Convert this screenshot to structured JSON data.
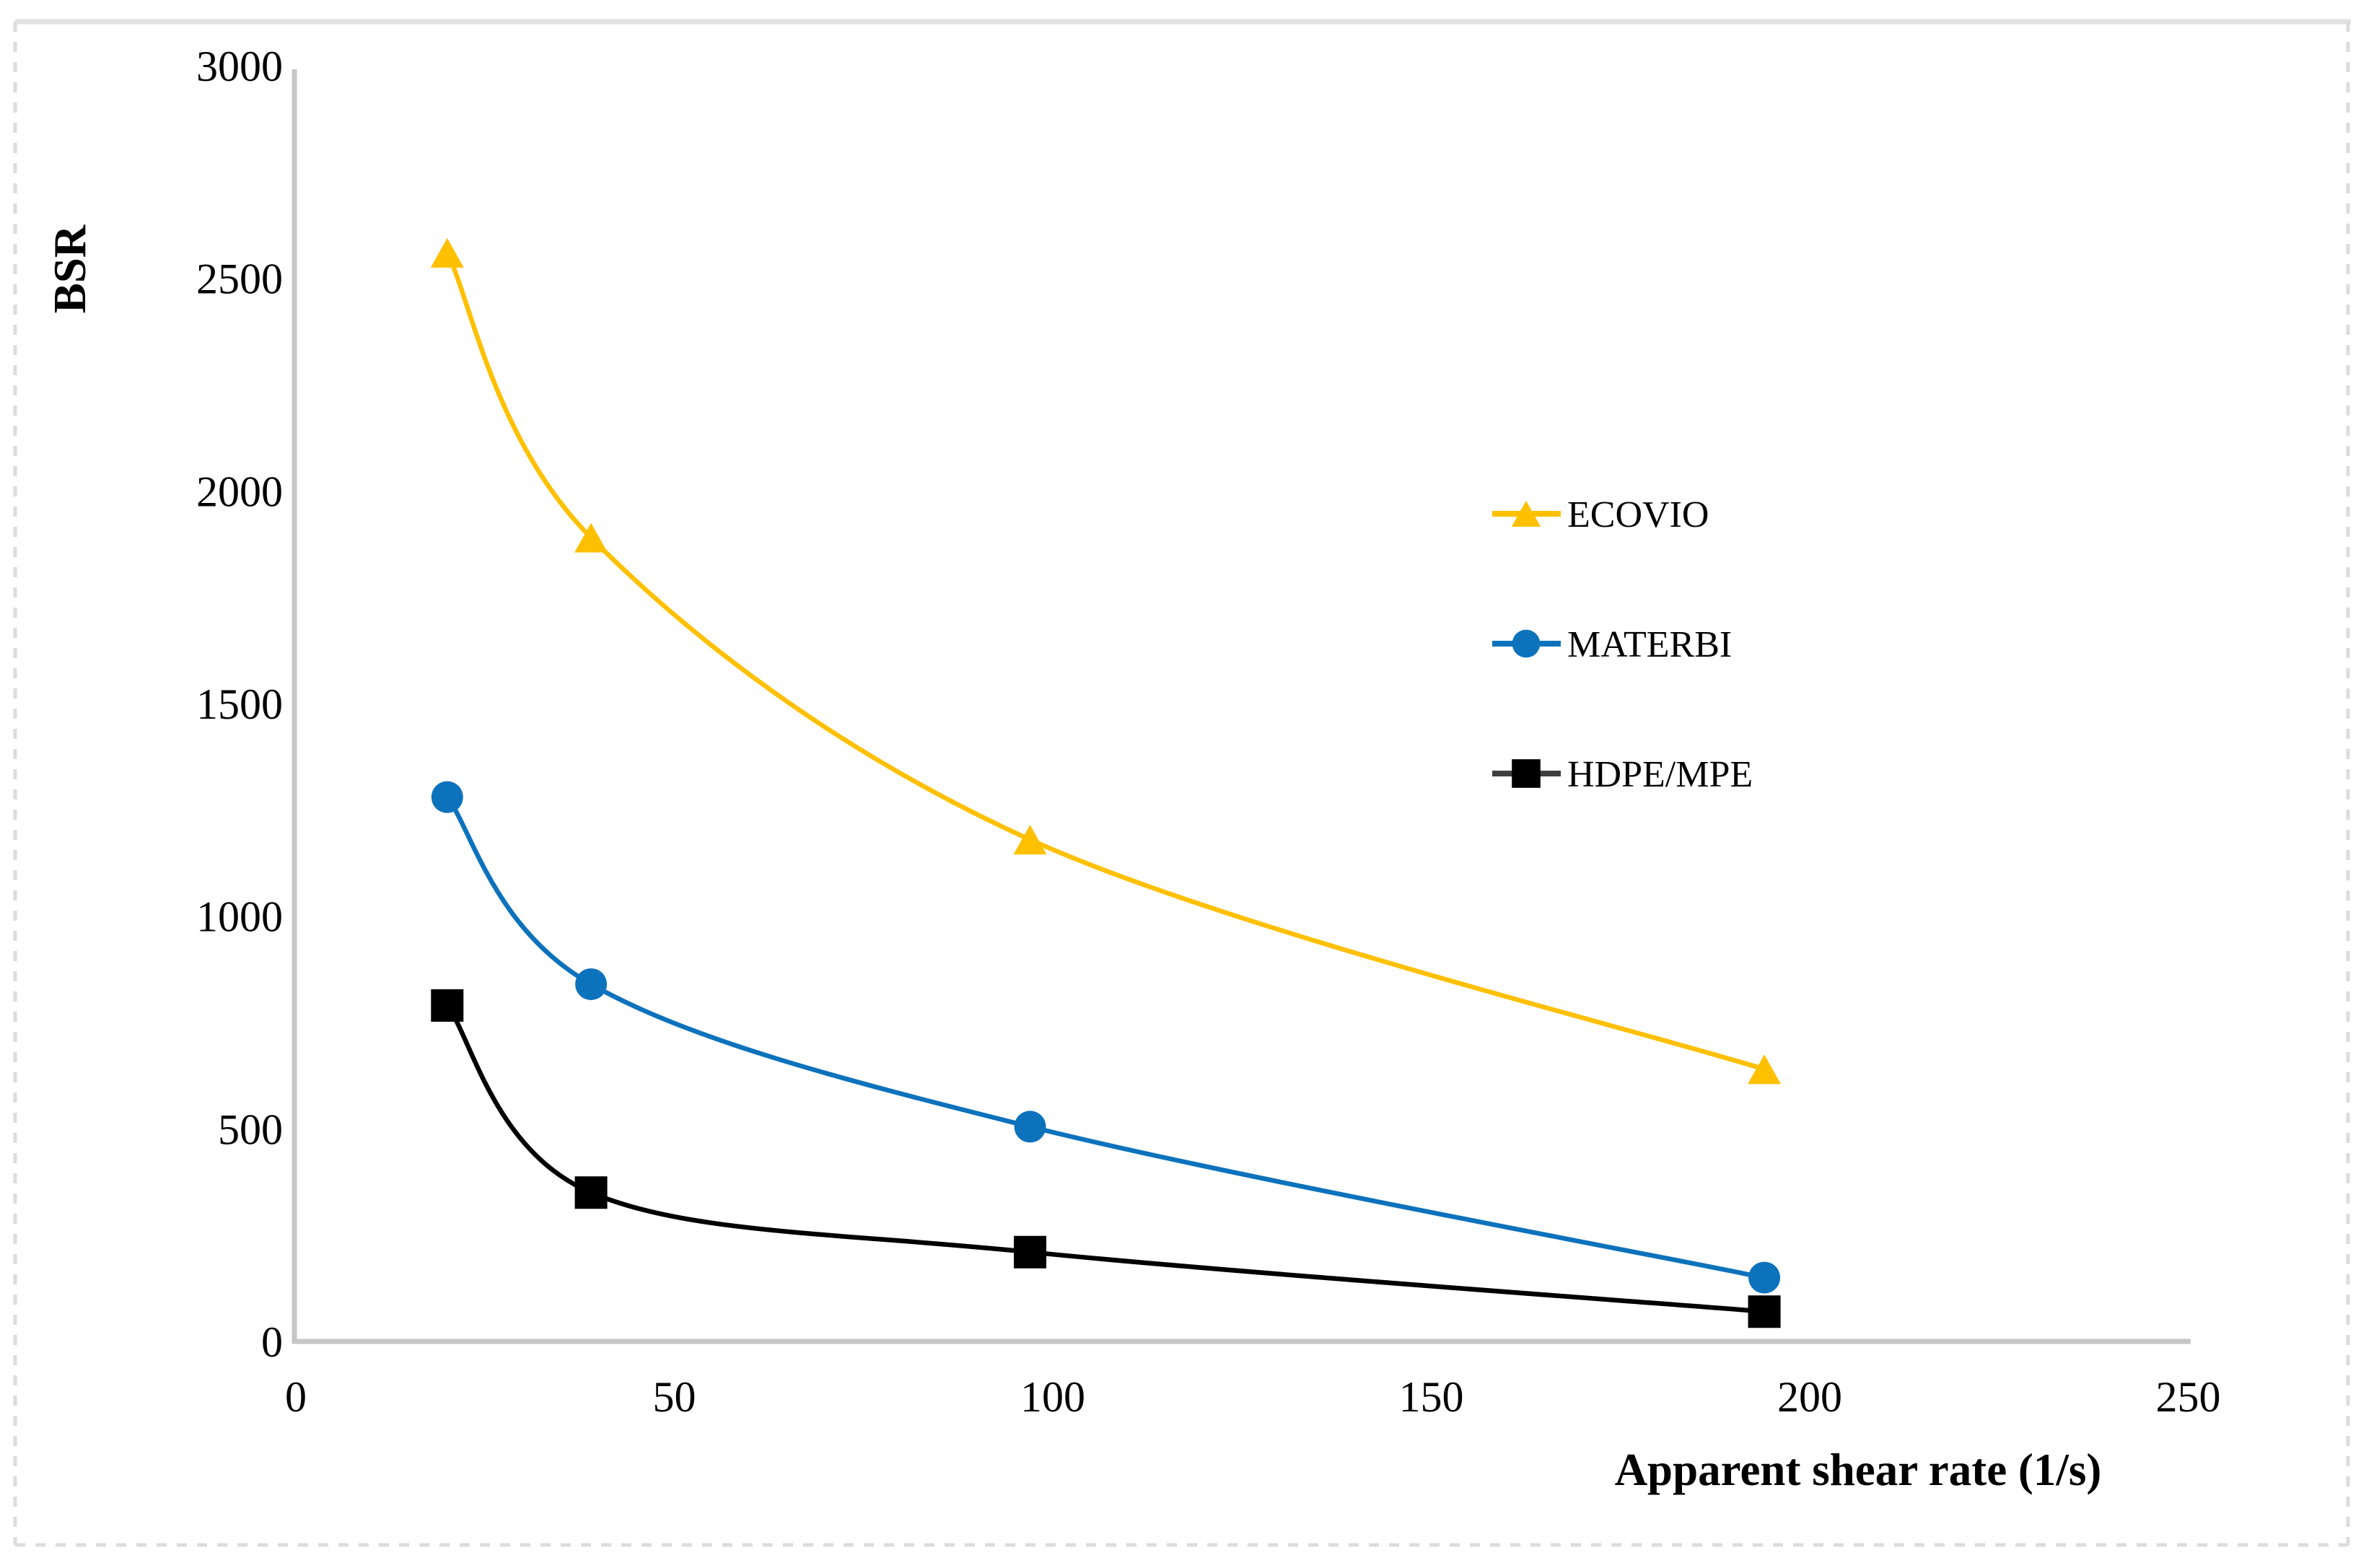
{
  "figure": {
    "y_axis_title": "BSR",
    "x_axis_title": "Apparent shear rate (1/s)"
  },
  "chart_data": {
    "type": "line",
    "title": "",
    "xlabel": "Apparent shear rate (1/s)",
    "ylabel": "BSR",
    "xlim": [
      0,
      250
    ],
    "ylim": [
      0,
      3000
    ],
    "x_ticks": [
      "0",
      "50",
      "100",
      "150",
      "200",
      "250"
    ],
    "y_ticks": [
      "0",
      "500",
      "1000",
      "1500",
      "2000",
      "2500",
      "3000"
    ],
    "grid": false,
    "smooth_lines": true,
    "legend_position": "right-center",
    "x": [
      20,
      39,
      97,
      194
    ],
    "series": [
      {
        "name": "ECOVIO",
        "marker": "triangle",
        "color": "#FFC000",
        "values": [
          2560,
          1890,
          1180,
          640
        ]
      },
      {
        "name": "MATERBI",
        "marker": "circle",
        "color": "#0D72BC",
        "values": [
          1280,
          840,
          505,
          150
        ]
      },
      {
        "name": "HDPE/MPE",
        "marker": "square",
        "color": "#000000",
        "values": [
          790,
          350,
          210,
          70
        ]
      }
    ]
  },
  "colors": {
    "background": "#FFFFFF",
    "axis_line": "#C6C6C6",
    "border_dashed": "#DCDCDC",
    "border_top": "#E2E2E2",
    "text": "#000000"
  }
}
